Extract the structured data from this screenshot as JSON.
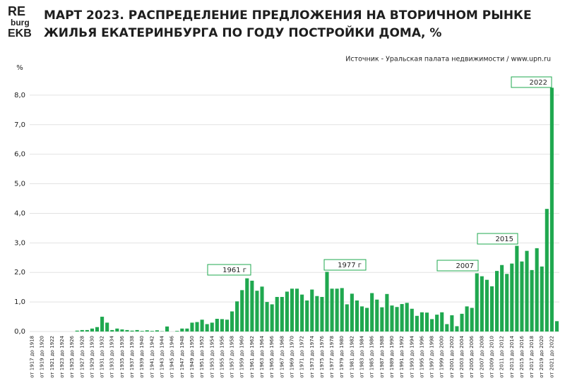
{
  "chart_data": {
    "type": "bar",
    "logo": [
      "RE",
      "burg",
      "EKB"
    ],
    "title": [
      "МАРТ 2023. РАСПРЕДЕЛЕНИЕ ПРЕДЛОЖЕНИЯ НА ВТОРИЧНОМ РЫНКЕ",
      "ЖИЛЬЯ ЕКАТЕРИНБУРГА ПО ГОДУ ПОСТРОЙКИ ДОМА, %"
    ],
    "source": "Источник - Уральская палата недвижимости / www.upn.ru",
    "y_label": "%",
    "color": "#1fa84f",
    "grid": true,
    "ylim": [
      0,
      9
    ],
    "yticks": [
      {
        "value": 0,
        "label": "0,0"
      },
      {
        "value": 1,
        "label": "1,0"
      },
      {
        "value": 2,
        "label": "2,0"
      },
      {
        "value": 3,
        "label": "3,0"
      },
      {
        "value": 4,
        "label": "4,0"
      },
      {
        "value": 5,
        "label": "5,0"
      },
      {
        "value": 6,
        "label": "6,0"
      },
      {
        "value": 7,
        "label": "7,0"
      },
      {
        "value": 8,
        "label": "8,0"
      }
    ],
    "annotations": [
      "1961 г",
      "1977 г",
      "2007",
      "2015",
      "2022"
    ],
    "categories": [
      "от 1917 до 1918",
      null,
      "от 1919 до 1920",
      null,
      "от 1921 до 1922",
      null,
      "от 1923 до 1924",
      null,
      "от 1925 до 1926",
      null,
      "от 1927 до 1928",
      null,
      "от 1929 до 1930",
      null,
      "от 1931 до 1932",
      null,
      "от 1933 до 1934",
      null,
      "от 1935 до 1936",
      null,
      "от 1937 до 1938",
      null,
      "от 1939 до 1940",
      null,
      "от 1941 до 1942",
      null,
      "от 1943 до 1944",
      null,
      "от 1945 до 1946",
      null,
      "от 1947 до 1948",
      null,
      "от 1949 до 1950",
      null,
      "от 1951 до 1952",
      null,
      "от 1953 до 1954",
      null,
      "от 1955 до 1956",
      null,
      "от 1957 до 1958",
      null,
      "от 1959 до 1960",
      null,
      "от 1961 до 1962",
      null,
      "от 1963 до 1964",
      null,
      "от 1965 до 1966",
      null,
      "от 1967 до 1968",
      null,
      "от 1969 до 1970",
      null,
      "от 1971 до 1972",
      null,
      "от 1973 до 1974",
      null,
      "от 1975 до 1976",
      null,
      "от 1977 до 1978",
      null,
      "от 1979 до 1980",
      null,
      "от 1981 до 1982",
      null,
      "от 1983 до 1984",
      null,
      "от 1985 до 1986",
      null,
      "от 1987 до 1988",
      null,
      "от 1989 до 1990",
      null,
      "от 1991 до 1992",
      null,
      "от 1993 до 1994",
      null,
      "от 1995 до 1996",
      null,
      "от 1997 до 1998",
      null,
      "от 1999 до 2000",
      null,
      "от 2001 до 2002",
      null,
      "от 2003 до 2004",
      null,
      "от 2005 до 2006",
      null,
      "от 2007 до 2008",
      null,
      "от 2009 до 2010",
      null,
      "от 2011 до 2012",
      null,
      "от 2013 до 2014",
      null,
      "от 2015 до 2016",
      null,
      "от 2017 до 2018",
      null,
      "от 2019 до 2020",
      null,
      "от 2021 до 2022",
      null
    ],
    "values": [
      0,
      0,
      0,
      0,
      0,
      0,
      0,
      0,
      0,
      0.03,
      0.05,
      0.05,
      0.1,
      0.15,
      0.5,
      0.3,
      0.05,
      0.1,
      0.07,
      0.05,
      0.03,
      0.05,
      0.02,
      0.04,
      0.02,
      0.04,
      0.01,
      0.17,
      0,
      0.02,
      0.1,
      0.1,
      0.3,
      0.32,
      0.4,
      0.25,
      0.3,
      0.43,
      0.42,
      0.4,
      0.68,
      1.02,
      1.4,
      1.8,
      1.72,
      1.38,
      1.52,
      1.0,
      0.92,
      1.17,
      1.17,
      1.35,
      1.45,
      1.45,
      1.25,
      1.05,
      1.42,
      1.2,
      1.17,
      2.02,
      1.45,
      1.45,
      1.47,
      0.92,
      1.28,
      1.05,
      0.85,
      0.8,
      1.3,
      1.08,
      0.82,
      1.27,
      0.88,
      0.83,
      0.93,
      0.97,
      0.77,
      0.53,
      0.65,
      0.64,
      0.42,
      0.57,
      0.65,
      0.25,
      0.55,
      0.18,
      0.6,
      0.85,
      0.8,
      1.97,
      1.87,
      1.75,
      1.53,
      2.05,
      2.25,
      1.95,
      2.3,
      2.9,
      2.37,
      2.73,
      2.08,
      2.82,
      2.2,
      4.15,
      8.25,
      0.35
    ]
  }
}
